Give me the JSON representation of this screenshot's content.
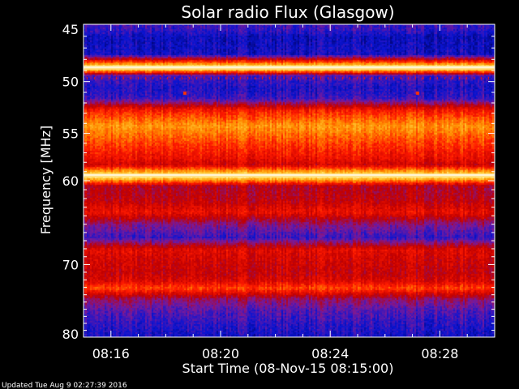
{
  "chart_data": {
    "type": "heatmap",
    "title": "Solar radio Flux (Glasgow)",
    "xlabel": "Start Time (08-Nov-15 08:15:00)",
    "ylabel": "Frequency [MHz]",
    "x_axis": {
      "unit": "minutes after 08:15:00",
      "range": [
        0,
        15
      ],
      "tick_values": [
        1,
        5,
        9,
        13
      ],
      "tick_labels": [
        "08:16",
        "08:20",
        "08:24",
        "08:28"
      ]
    },
    "y_axis": {
      "unit": "MHz",
      "range": [
        45,
        80
      ],
      "scale": "log",
      "inverted": true,
      "tick_values": [
        45,
        50,
        55,
        60,
        70,
        80
      ],
      "tick_labels": [
        "45",
        "50",
        "55",
        "60",
        "70",
        "80"
      ]
    },
    "colormap": [
      "#000060",
      "#0a14d2",
      "#7a1a9a",
      "#c00000",
      "#ff1a00",
      "#ff8c00",
      "#ffd23c",
      "#fff6dc"
    ],
    "frequency_profile": [
      {
        "mhz": 45.3,
        "level": 0.2
      },
      {
        "mhz": 46.0,
        "level": 0.12
      },
      {
        "mhz": 47.5,
        "level": 0.14
      },
      {
        "mhz": 48.7,
        "level": 1.0
      },
      {
        "mhz": 49.4,
        "level": 0.22
      },
      {
        "mhz": 50.5,
        "level": 0.16
      },
      {
        "mhz": 51.5,
        "level": 0.2
      },
      {
        "mhz": 52.6,
        "level": 0.55
      },
      {
        "mhz": 54.2,
        "level": 0.74
      },
      {
        "mhz": 55.8,
        "level": 0.62
      },
      {
        "mhz": 57.5,
        "level": 0.52
      },
      {
        "mhz": 58.2,
        "level": 0.46
      },
      {
        "mhz": 59.4,
        "level": 0.96
      },
      {
        "mhz": 60.5,
        "level": 0.4
      },
      {
        "mhz": 62.0,
        "level": 0.42
      },
      {
        "mhz": 63.5,
        "level": 0.52
      },
      {
        "mhz": 65.0,
        "level": 0.3
      },
      {
        "mhz": 66.5,
        "level": 0.2
      },
      {
        "mhz": 68.0,
        "level": 0.5
      },
      {
        "mhz": 69.5,
        "level": 0.46
      },
      {
        "mhz": 71.0,
        "level": 0.44
      },
      {
        "mhz": 72.0,
        "level": 0.48
      },
      {
        "mhz": 73.0,
        "level": 0.62
      },
      {
        "mhz": 74.5,
        "level": 0.34
      },
      {
        "mhz": 76.0,
        "level": 0.24
      },
      {
        "mhz": 78.0,
        "level": 0.18
      },
      {
        "mhz": 80.0,
        "level": 0.14
      }
    ],
    "bright_lines_mhz": [
      48.7,
      59.4
    ],
    "point_sources": [
      {
        "time_min": 3.7,
        "mhz": 51.1
      },
      {
        "time_min": 12.2,
        "mhz": 51.1
      }
    ]
  },
  "footer": {
    "updated": "Updated Tue Aug  9 02:27:39 2016"
  }
}
